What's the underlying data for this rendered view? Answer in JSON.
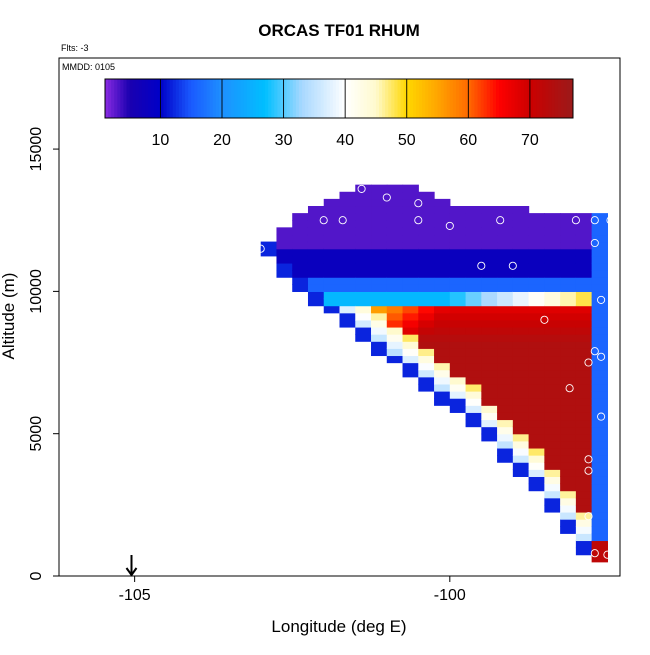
{
  "chart_data": {
    "type": "heatmap",
    "title": "ORCAS TF01 RHUM",
    "flts_label": "Flts: -3",
    "date_label": "MMDD: 0105",
    "xlabel": "Longitude (deg E)",
    "ylabel": "Altitude (m)",
    "xlim": [
      -106.2,
      -97.3
    ],
    "ylim": [
      0,
      18200
    ],
    "x_ticks": [
      {
        "value": -105,
        "label": "-105"
      },
      {
        "value": -100,
        "label": "-100"
      }
    ],
    "y_ticks": [
      {
        "value": 0,
        "label": "0"
      },
      {
        "value": 5000,
        "label": "5000"
      },
      {
        "value": 10000,
        "label": "10000"
      },
      {
        "value": 15000,
        "label": "15000"
      }
    ],
    "colorbar": {
      "range": [
        1,
        77
      ],
      "ticks": [
        {
          "value": 10,
          "label": "10"
        },
        {
          "value": 20,
          "label": "20"
        },
        {
          "value": 30,
          "label": "30"
        },
        {
          "value": 40,
          "label": "40"
        },
        {
          "value": 50,
          "label": "50"
        },
        {
          "value": 60,
          "label": "60"
        },
        {
          "value": 70,
          "label": "70"
        }
      ],
      "stops": [
        {
          "v": 1,
          "c": "#8a2be2"
        },
        {
          "v": 5,
          "c": "#1a00b0"
        },
        {
          "v": 10,
          "c": "#0000c8"
        },
        {
          "v": 15,
          "c": "#1a5aff"
        },
        {
          "v": 20,
          "c": "#1e90ff"
        },
        {
          "v": 27,
          "c": "#00bfff"
        },
        {
          "v": 33,
          "c": "#a8d8ff"
        },
        {
          "v": 40,
          "c": "#ffffff"
        },
        {
          "v": 45,
          "c": "#fffacd"
        },
        {
          "v": 50,
          "c": "#ffd700"
        },
        {
          "v": 55,
          "c": "#ffa500"
        },
        {
          "v": 60,
          "c": "#ff6a00"
        },
        {
          "v": 65,
          "c": "#ff0000"
        },
        {
          "v": 70,
          "c": "#cc0000"
        },
        {
          "v": 77,
          "c": "#9b1a1a"
        }
      ]
    },
    "grid_cell": {
      "dx": 0.25,
      "dy": 250
    },
    "domain": {
      "lon_max": -97.5,
      "alt_top": [
        {
          "lon": -103,
          "alt": 11600
        },
        {
          "lon": -102.4,
          "alt": 12700
        },
        {
          "lon": -101.5,
          "alt": 13600
        },
        {
          "lon": -100.8,
          "alt": 13900
        },
        {
          "lon": -100.2,
          "alt": 13200
        },
        {
          "lon": -99.5,
          "alt": 13000
        },
        {
          "lon": -97.5,
          "alt": 12600
        }
      ],
      "alt_bottom": [
        {
          "lon": -103,
          "alt": 11600
        },
        {
          "lon": -102.6,
          "alt": 10400
        },
        {
          "lon": -99.6,
          "alt": 5200
        },
        {
          "lon": -98.5,
          "alt": 2700
        },
        {
          "lon": -97.8,
          "alt": 600
        },
        {
          "lon": -97.5,
          "alt": 500
        }
      ]
    },
    "flight_points": [
      {
        "lon": -101.4,
        "alt": 13600
      },
      {
        "lon": -101.0,
        "alt": 13300
      },
      {
        "lon": -100.5,
        "alt": 13100
      },
      {
        "lon": -102.0,
        "alt": 12500
      },
      {
        "lon": -101.7,
        "alt": 12500
      },
      {
        "lon": -100.5,
        "alt": 12500
      },
      {
        "lon": -100.0,
        "alt": 12300
      },
      {
        "lon": -99.2,
        "alt": 12500
      },
      {
        "lon": -98.0,
        "alt": 12500
      },
      {
        "lon": -97.7,
        "alt": 12500
      },
      {
        "lon": -97.45,
        "alt": 12500
      },
      {
        "lon": -103.0,
        "alt": 11500
      },
      {
        "lon": -97.7,
        "alt": 11700
      },
      {
        "lon": -99.5,
        "alt": 10900
      },
      {
        "lon": -99.0,
        "alt": 10900
      },
      {
        "lon": -97.6,
        "alt": 9700
      },
      {
        "lon": -98.5,
        "alt": 9000
      },
      {
        "lon": -97.7,
        "alt": 7900
      },
      {
        "lon": -97.6,
        "alt": 7700
      },
      {
        "lon": -97.8,
        "alt": 7500
      },
      {
        "lon": -98.1,
        "alt": 6600
      },
      {
        "lon": -97.6,
        "alt": 5600
      },
      {
        "lon": -97.8,
        "alt": 4100
      },
      {
        "lon": -97.8,
        "alt": 3700
      },
      {
        "lon": -97.8,
        "alt": 2100
      },
      {
        "lon": -97.4,
        "alt": 1700
      },
      {
        "lon": -97.7,
        "alt": 800
      },
      {
        "lon": -97.5,
        "alt": 750
      },
      {
        "lon": -97.4,
        "alt": 750
      },
      {
        "lon": -97.2,
        "alt": 750
      }
    ],
    "marker": {
      "type": "down-arrow",
      "lon": -105.05,
      "alt": 0
    }
  }
}
